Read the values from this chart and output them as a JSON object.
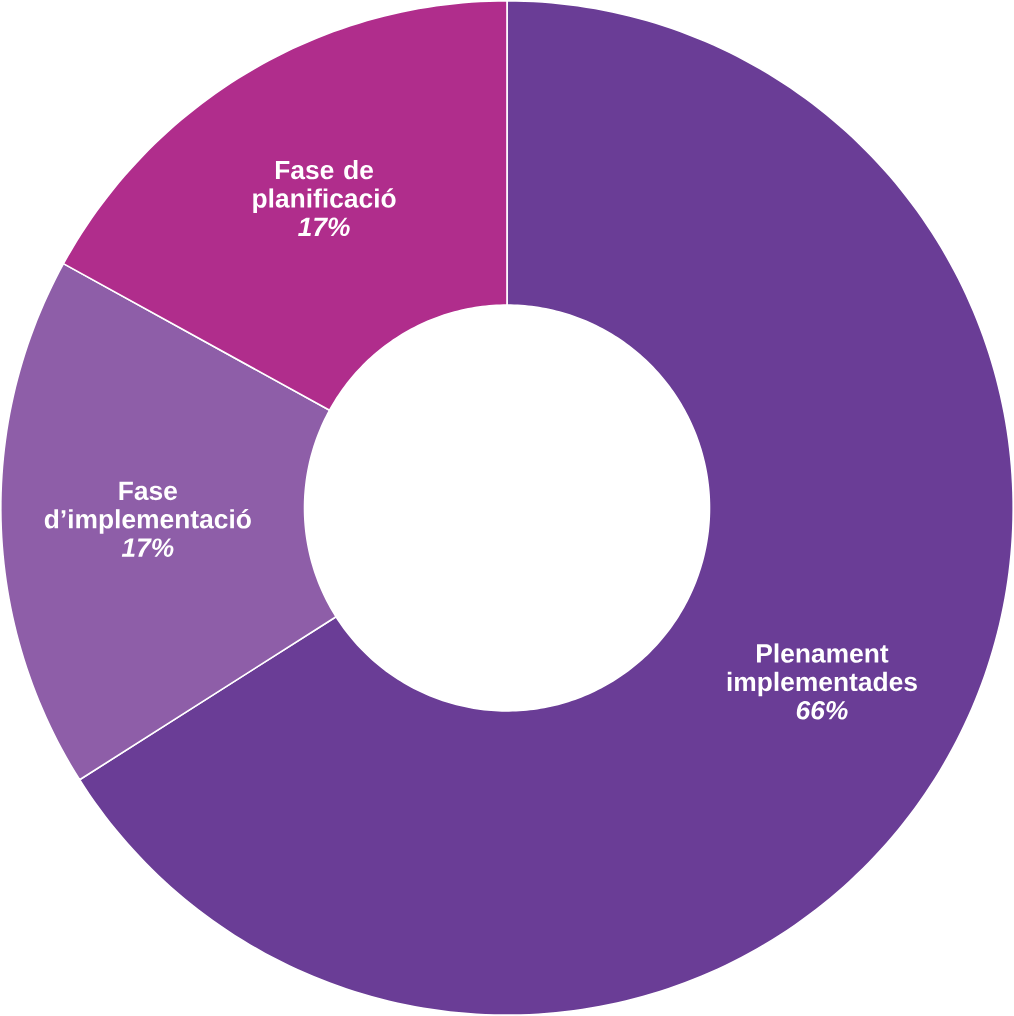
{
  "chart_data": {
    "type": "donut",
    "categories": [
      "Plenament implementades",
      "Fase d’implementació",
      "Fase de planificació"
    ],
    "values": [
      66,
      17,
      17
    ],
    "value_labels": [
      "66%",
      "17%",
      "17%"
    ],
    "colors": [
      "#6a3d96",
      "#8e5ea8",
      "#b02d8c"
    ]
  }
}
